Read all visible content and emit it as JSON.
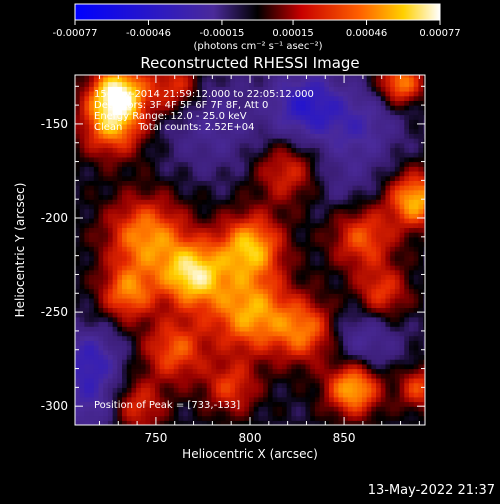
{
  "chart_data": {
    "type": "heatmap",
    "title": "Reconstructed RHESSI Image",
    "xlabel": "Heliocentric X (arcsec)",
    "ylabel": "Heliocentric Y (arcsec)",
    "xlim": [
      707,
      893
    ],
    "ylim": [
      -310,
      -124
    ],
    "x_ticks": [
      750,
      800,
      850
    ],
    "y_ticks": [
      -150,
      -200,
      -250,
      -300
    ],
    "colorbar": {
      "unit_label": "(photons cm⁻² s⁻¹ asec⁻²)",
      "range": [
        -0.00077,
        0.00077
      ],
      "tick_values": [
        -0.00077,
        -0.00046,
        -0.00015,
        0.00015,
        0.00046,
        0.00077
      ],
      "tick_labels": [
        "-0.00077",
        "-0.00046",
        "-0.00015",
        "0.00015",
        "0.00046",
        "0.00077"
      ]
    },
    "annotations": [
      "15-May-2014 21:59:12.000 to 22:05:12.000",
      "Detectors: 3F 4F 5F 6F 7F 8F, Att 0",
      "Energy Range: 12.0 - 25.0 keV",
      "Clean     Total counts: 2.52E+04"
    ],
    "peak_text": "Position of Peak = [733,-133]",
    "peak": {
      "x": 733,
      "y": -133
    },
    "bright_regions": [
      {
        "x": 730,
        "y": -133,
        "level": 0.95,
        "size": 10
      },
      {
        "x": 727,
        "y": -150,
        "level": 0.7,
        "size": 12
      },
      {
        "x": 760,
        "y": -130,
        "level": 0.5,
        "size": 10
      },
      {
        "x": 880,
        "y": -128,
        "level": 0.7,
        "size": 8
      },
      {
        "x": 888,
        "y": -190,
        "level": 0.8,
        "size": 10
      },
      {
        "x": 745,
        "y": -210,
        "level": 0.7,
        "size": 15
      },
      {
        "x": 770,
        "y": -230,
        "level": 0.9,
        "size": 12
      },
      {
        "x": 800,
        "y": -215,
        "level": 0.8,
        "size": 12
      },
      {
        "x": 800,
        "y": -250,
        "level": 0.75,
        "size": 15
      },
      {
        "x": 830,
        "y": -260,
        "level": 0.6,
        "size": 12
      },
      {
        "x": 760,
        "y": -270,
        "level": 0.55,
        "size": 12
      },
      {
        "x": 735,
        "y": -240,
        "level": 0.6,
        "size": 10
      },
      {
        "x": 860,
        "y": -210,
        "level": 0.55,
        "size": 12
      },
      {
        "x": 870,
        "y": -240,
        "level": 0.5,
        "size": 10
      },
      {
        "x": 855,
        "y": -290,
        "level": 0.85,
        "size": 10
      },
      {
        "x": 740,
        "y": -300,
        "level": 0.45,
        "size": 10
      },
      {
        "x": 790,
        "y": -290,
        "level": 0.45,
        "size": 10
      },
      {
        "x": 820,
        "y": -175,
        "level": 0.45,
        "size": 12
      },
      {
        "x": 890,
        "y": -290,
        "level": 0.5,
        "size": 8
      }
    ],
    "dark_regions": [
      {
        "x": 830,
        "y": -140,
        "level": -0.6,
        "size": 14
      },
      {
        "x": 780,
        "y": -150,
        "level": -0.3,
        "size": 18
      },
      {
        "x": 860,
        "y": -150,
        "level": -0.35,
        "size": 14
      },
      {
        "x": 715,
        "y": -275,
        "level": -0.5,
        "size": 12
      },
      {
        "x": 715,
        "y": -300,
        "level": -0.35,
        "size": 12
      },
      {
        "x": 860,
        "y": -265,
        "level": -0.35,
        "size": 14
      },
      {
        "x": 850,
        "y": -180,
        "level": -0.2,
        "size": 14
      }
    ]
  },
  "footer": {
    "timestamp": "13-May-2022 21:37"
  }
}
